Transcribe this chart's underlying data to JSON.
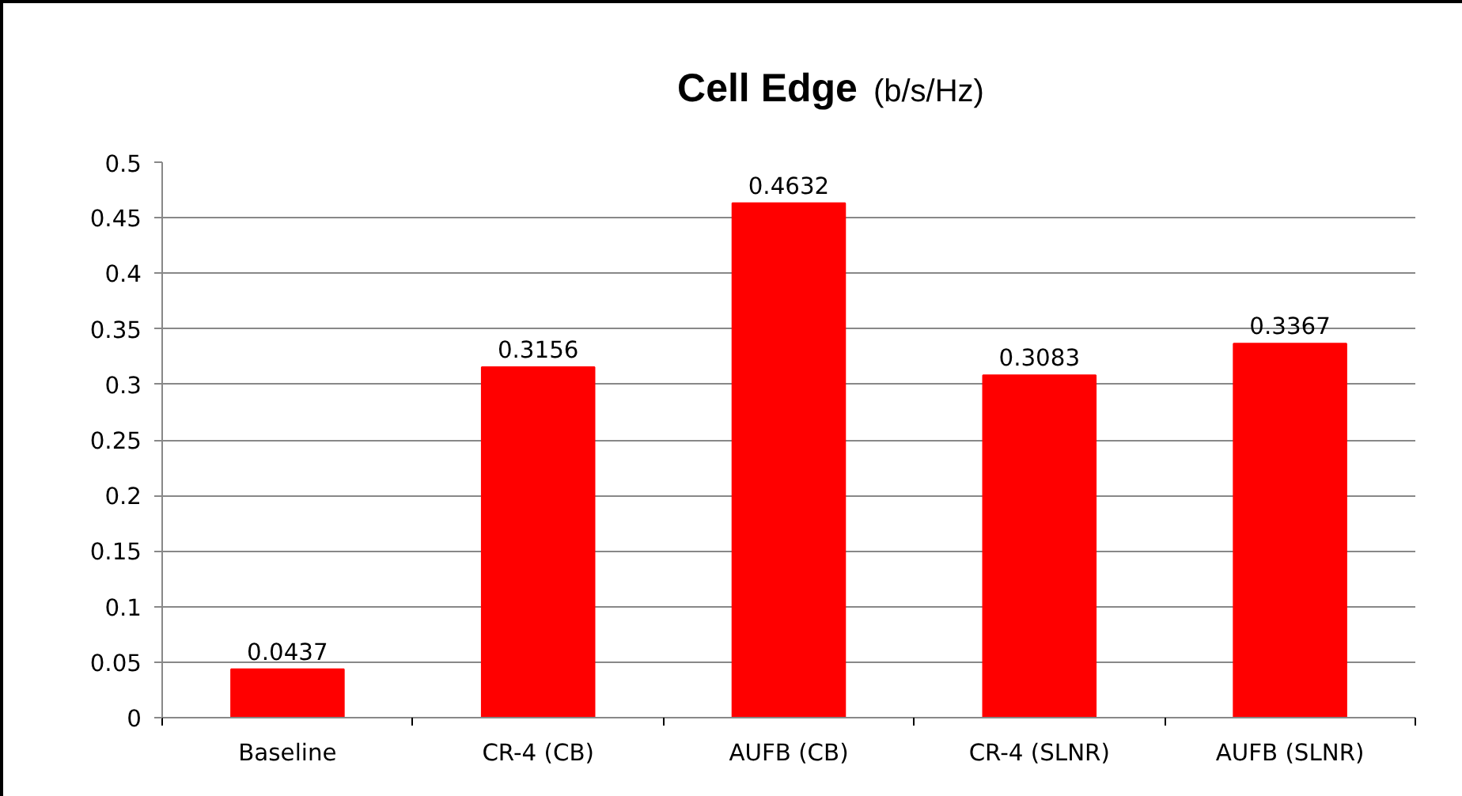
{
  "chart_data": {
    "type": "bar",
    "title": "Cell Edge",
    "subtitle": "(b/s/Hz)",
    "categories": [
      "Baseline",
      "CR-4 (CB)",
      "AUFB (CB)",
      "CR-4 (SLNR)",
      "AUFB (SLNR)"
    ],
    "values": [
      0.0437,
      0.3156,
      0.4632,
      0.3083,
      0.3367
    ],
    "color": "#ff0000",
    "data_labels": true,
    "grid": "y",
    "ylim": [
      0,
      0.5
    ],
    "yticks": [
      0,
      0.05,
      0.1,
      0.15,
      0.2,
      0.25,
      0.3,
      0.35,
      0.4,
      0.45,
      0.5
    ]
  }
}
